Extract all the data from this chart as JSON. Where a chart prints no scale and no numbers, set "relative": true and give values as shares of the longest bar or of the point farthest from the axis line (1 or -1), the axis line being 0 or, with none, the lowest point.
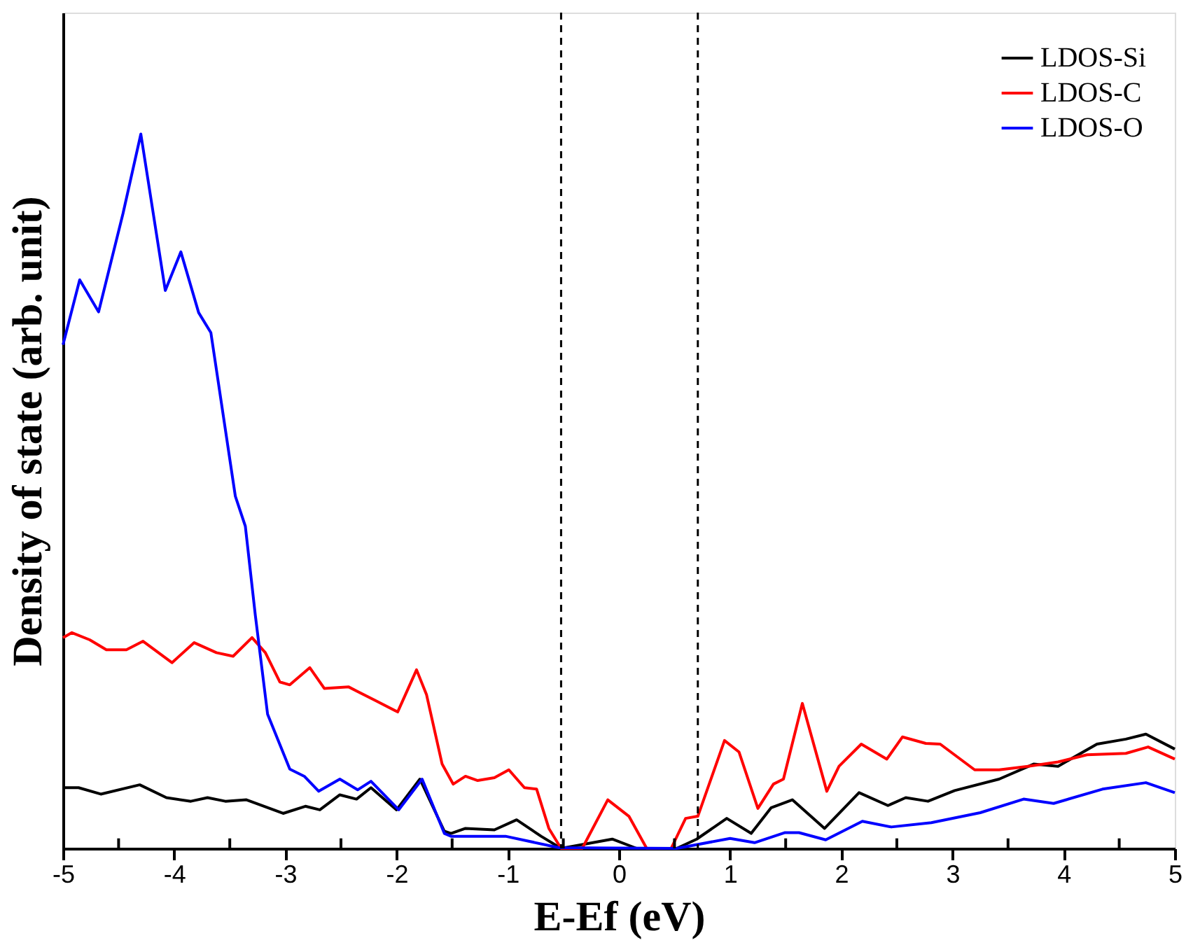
{
  "chart_data": {
    "type": "line",
    "relative": true,
    "xlabel": "E-Ef (eV)",
    "ylabel": "Density of state (arb. unit)",
    "xlim": [
      -5,
      5
    ],
    "xticks": [
      -5,
      {
        "value": -4.5,
        "label": null
      },
      -4,
      {
        "value": -3.5,
        "label": null
      },
      -3,
      {
        "value": -2.5,
        "label": null
      },
      -2,
      {
        "value": -1.5,
        "label": null
      },
      -1,
      {
        "value": -0.5,
        "label": null
      },
      0,
      {
        "value": 0.5,
        "label": null
      },
      1,
      {
        "value": 1.5,
        "label": null
      },
      2,
      {
        "value": 2.5,
        "label": null
      },
      3,
      {
        "value": 3.5,
        "label": null
      },
      4,
      {
        "value": 4.5,
        "label": null
      },
      5
    ],
    "legend": "top right",
    "grid": false,
    "line_style": "solid",
    "marker": "none",
    "ref_lines": [
      {
        "axis": "x",
        "value": -0.52,
        "color": "#000000",
        "line_style": "dashed"
      },
      {
        "axis": "x",
        "value": 0.71,
        "color": "#000000",
        "line_style": "dashed"
      }
    ],
    "series": [
      {
        "name": "LDOS-Si",
        "color": "#000000",
        "x": [
          -5.0,
          -4.86,
          -4.66,
          -4.31,
          -4.07,
          -3.85,
          -3.7,
          -3.54,
          -3.35,
          -3.02,
          -2.82,
          -2.69,
          -2.51,
          -2.36,
          -2.23,
          -2.0,
          -1.79,
          -1.57,
          -1.51,
          -1.38,
          -1.12,
          -0.92,
          -0.7,
          -0.52,
          -0.06,
          0.16,
          0.52,
          0.7,
          0.97,
          1.19,
          1.37,
          1.56,
          1.85,
          2.16,
          2.42,
          2.58,
          2.78,
          3.02,
          3.42,
          3.73,
          3.95,
          4.3,
          4.56,
          4.74,
          5.0
        ],
        "values": [
          0.085,
          0.085,
          0.076,
          0.089,
          0.071,
          0.066,
          0.071,
          0.066,
          0.068,
          0.049,
          0.059,
          0.054,
          0.075,
          0.069,
          0.085,
          0.054,
          0.097,
          0.024,
          0.021,
          0.028,
          0.026,
          0.04,
          0.017,
          0,
          0.013,
          0,
          0,
          0.013,
          0.042,
          0.021,
          0.057,
          0.068,
          0.028,
          0.078,
          0.06,
          0.071,
          0.066,
          0.081,
          0.097,
          0.118,
          0.115,
          0.146,
          0.153,
          0.16,
          0.139
        ]
      },
      {
        "name": "LDOS-C",
        "color": "#ff0000",
        "x": [
          -5.0,
          -4.92,
          -4.76,
          -4.61,
          -4.43,
          -4.28,
          -4.02,
          -3.82,
          -3.62,
          -3.47,
          -3.3,
          -3.18,
          -3.05,
          -2.96,
          -2.78,
          -2.65,
          -2.43,
          -2.19,
          -1.99,
          -1.82,
          -1.73,
          -1.59,
          -1.49,
          -1.38,
          -1.27,
          -1.12,
          -0.99,
          -0.85,
          -0.74,
          -0.63,
          -0.52,
          -0.33,
          -0.1,
          0.09,
          0.25,
          0.47,
          0.6,
          0.71,
          0.95,
          1.08,
          1.25,
          1.39,
          1.48,
          1.65,
          1.87,
          1.98,
          2.18,
          2.41,
          2.55,
          2.76,
          2.89,
          3.2,
          3.42,
          3.68,
          3.95,
          4.21,
          4.56,
          4.76,
          5.0
        ],
        "values": [
          0.295,
          0.302,
          0.292,
          0.278,
          0.278,
          0.29,
          0.26,
          0.288,
          0.274,
          0.269,
          0.295,
          0.274,
          0.233,
          0.229,
          0.253,
          0.224,
          0.226,
          0.207,
          0.191,
          0.25,
          0.215,
          0.118,
          0.09,
          0.101,
          0.095,
          0.099,
          0.11,
          0.085,
          0.083,
          0.028,
          0,
          0,
          0.068,
          0.045,
          0,
          0,
          0.042,
          0.045,
          0.151,
          0.135,
          0.056,
          0.09,
          0.097,
          0.203,
          0.08,
          0.115,
          0.146,
          0.125,
          0.156,
          0.147,
          0.146,
          0.11,
          0.11,
          0.115,
          0.121,
          0.131,
          0.133,
          0.142,
          0.125
        ]
      },
      {
        "name": "LDOS-O",
        "color": "#0000ff",
        "x": [
          -5.0,
          -4.85,
          -4.68,
          -4.46,
          -4.3,
          -4.08,
          -3.94,
          -3.78,
          -3.67,
          -3.45,
          -3.36,
          -3.27,
          -3.16,
          -2.96,
          -2.83,
          -2.7,
          -2.51,
          -2.35,
          -2.23,
          -1.98,
          -1.77,
          -1.57,
          -1.51,
          -1.02,
          -0.54,
          0.52,
          1.0,
          1.22,
          1.49,
          1.62,
          1.86,
          2.19,
          2.45,
          2.81,
          3.25,
          3.64,
          3.91,
          4.35,
          4.74,
          5.0
        ],
        "values": [
          0.705,
          0.796,
          0.751,
          0.889,
          1.0,
          0.781,
          0.835,
          0.75,
          0.722,
          0.493,
          0.451,
          0.326,
          0.188,
          0.111,
          0.101,
          0.08,
          0.097,
          0.082,
          0.094,
          0.054,
          0.097,
          0.021,
          0.017,
          0.017,
          0.001,
          0,
          0.014,
          0.008,
          0.022,
          0.022,
          0.012,
          0.038,
          0.03,
          0.036,
          0.05,
          0.069,
          0.063,
          0.083,
          0.092,
          0.078
        ]
      }
    ]
  }
}
